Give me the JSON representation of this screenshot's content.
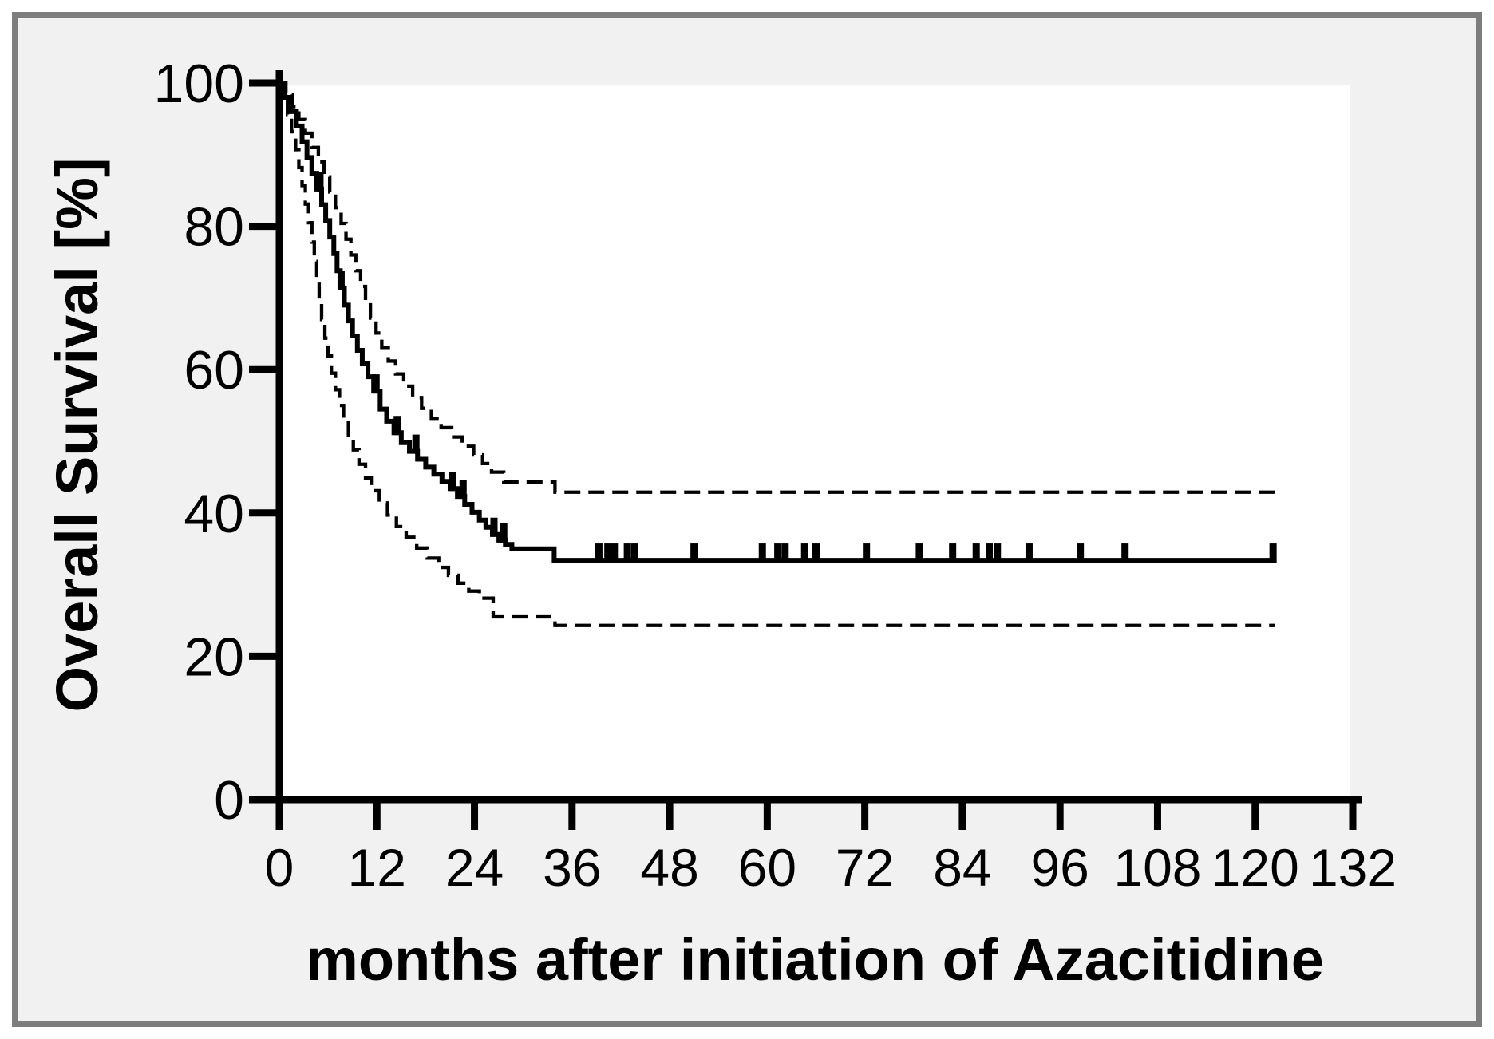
{
  "figure": {
    "xlabel": "months after initiation of Azacitidine",
    "ylabel": "Overall Survival [%]",
    "background_color": "#f1f1f1",
    "panel_color": "#ffffff",
    "border_color": "#7d7d7d",
    "curve_color": "#000000"
  },
  "chart_data": {
    "type": "line",
    "subtype": "kaplan-meier-step",
    "title": "",
    "xlabel": "months after initiation of Azacitidine",
    "ylabel": "Overall Survival [%]",
    "xlim": [
      0,
      132
    ],
    "ylim": [
      0,
      100
    ],
    "x_ticks": [
      0,
      12,
      24,
      36,
      48,
      60,
      72,
      84,
      96,
      108,
      120,
      132
    ],
    "y_ticks": [
      0,
      20,
      40,
      60,
      80,
      100
    ],
    "grid": false,
    "legend": "none",
    "series": [
      {
        "name": "overall-survival",
        "style": "solid",
        "end_month": 122.5,
        "plateau_percent": 33.4,
        "steps": [
          [
            0,
            100
          ],
          [
            0.7,
            98
          ],
          [
            1.4,
            96
          ],
          [
            2.1,
            94
          ],
          [
            2.8,
            91.8
          ],
          [
            3.4,
            89.6
          ],
          [
            4,
            87.4
          ],
          [
            4.6,
            85.2
          ],
          [
            5.2,
            83
          ],
          [
            5.7,
            80.8
          ],
          [
            6.2,
            78.5
          ],
          [
            6.7,
            76.2
          ],
          [
            7.1,
            73.8
          ],
          [
            7.5,
            71.4
          ],
          [
            8,
            69
          ],
          [
            8.5,
            66.8
          ],
          [
            9,
            64.7
          ],
          [
            9.6,
            62.7
          ],
          [
            10.2,
            60.8
          ],
          [
            10.9,
            59
          ],
          [
            11.6,
            57
          ],
          [
            12.4,
            54.5
          ],
          [
            13.2,
            52.8
          ],
          [
            14.1,
            51.2
          ],
          [
            15,
            49.8
          ],
          [
            16,
            48.6
          ],
          [
            17,
            47.5
          ],
          [
            18,
            46.4
          ],
          [
            19,
            45.4
          ],
          [
            20,
            44.4
          ],
          [
            21,
            43.4
          ],
          [
            21.9,
            42.3
          ],
          [
            22.8,
            41.2
          ],
          [
            23.7,
            40.1
          ],
          [
            24.6,
            39
          ],
          [
            25.4,
            38
          ],
          [
            26.2,
            37
          ],
          [
            27,
            36.2
          ],
          [
            27.8,
            35.6
          ],
          [
            28.6,
            35
          ],
          [
            33.8,
            33.4
          ]
        ]
      },
      {
        "name": "upper-95ci",
        "style": "dashed",
        "end_month": 122.4,
        "plateau_percent": 42.9,
        "steps": [
          [
            0,
            100
          ],
          [
            0.8,
            98.4
          ],
          [
            1.6,
            96.7
          ],
          [
            2.4,
            94.9
          ],
          [
            3.2,
            93
          ],
          [
            4,
            91
          ],
          [
            4.8,
            89
          ],
          [
            5.5,
            86.9
          ],
          [
            6.2,
            84.8
          ],
          [
            6.9,
            82.6
          ],
          [
            7.6,
            80.4
          ],
          [
            8.2,
            78.2
          ],
          [
            8.8,
            76
          ],
          [
            9.4,
            73.8
          ],
          [
            10,
            71.6
          ],
          [
            10.6,
            69.4
          ],
          [
            11.2,
            67.2
          ],
          [
            11.9,
            65.1
          ],
          [
            12.6,
            63.1
          ],
          [
            13.4,
            61.2
          ],
          [
            14.3,
            59.4
          ],
          [
            15.3,
            57.7
          ],
          [
            16.4,
            56.1
          ],
          [
            17.5,
            54.6
          ],
          [
            18.7,
            53.2
          ],
          [
            19.9,
            51.9
          ],
          [
            21.2,
            50.6
          ],
          [
            22.5,
            49.3
          ],
          [
            23.9,
            48.1
          ],
          [
            25,
            46.9
          ],
          [
            26.1,
            45.7
          ],
          [
            27.6,
            44.3
          ],
          [
            33.9,
            42.9
          ]
        ]
      },
      {
        "name": "lower-95ci",
        "style": "dashed",
        "end_month": 122.4,
        "plateau_percent": 24.3,
        "steps": [
          [
            0,
            100
          ],
          [
            0.5,
            97.9
          ],
          [
            1,
            95.6
          ],
          [
            1.5,
            93.2
          ],
          [
            2,
            90.7
          ],
          [
            2.4,
            88.2
          ],
          [
            2.8,
            85.7
          ],
          [
            3.2,
            83.1
          ],
          [
            3.6,
            80.5
          ],
          [
            4,
            77.8
          ],
          [
            4.3,
            75.1
          ],
          [
            4.6,
            72.4
          ],
          [
            4.9,
            69.7
          ],
          [
            5.2,
            67
          ],
          [
            5.6,
            64.4
          ],
          [
            6,
            61.9
          ],
          [
            6.4,
            59.5
          ],
          [
            6.9,
            57.2
          ],
          [
            7.4,
            55
          ],
          [
            7.9,
            52.9
          ],
          [
            8.5,
            50.8
          ],
          [
            9.1,
            48.8
          ],
          [
            9.8,
            46.8
          ],
          [
            10.6,
            44.9
          ],
          [
            11.4,
            43.1
          ],
          [
            12.3,
            41.4
          ],
          [
            13.3,
            39.7
          ],
          [
            14.4,
            38.1
          ],
          [
            15.6,
            36.6
          ],
          [
            16.9,
            35.1
          ],
          [
            18.2,
            33.7
          ],
          [
            19.6,
            32.4
          ],
          [
            20.8,
            31.3
          ],
          [
            22,
            30.2
          ],
          [
            23.3,
            29.1
          ],
          [
            24.6,
            28.1
          ],
          [
            26.3,
            25.5
          ],
          [
            33.9,
            24.3
          ]
        ]
      }
    ],
    "censor_marks_months": [
      5.0,
      7.6,
      11.9,
      14.5,
      16.8,
      21.3,
      22.6,
      26.4,
      27.6,
      39.3,
      40.4,
      41.2,
      42.8,
      43.7,
      51,
      59.4,
      61.3,
      62.2,
      64.6,
      66,
      72.2,
      78.7,
      82.8,
      85.7,
      87.3,
      88.3,
      92.2,
      98.5,
      104,
      122.2
    ]
  }
}
